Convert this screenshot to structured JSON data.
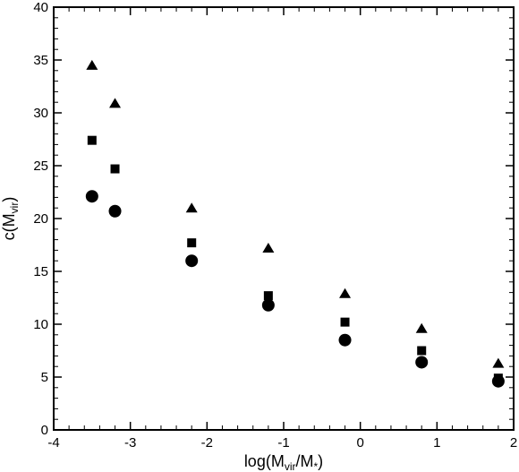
{
  "chart_data": {
    "type": "scatter",
    "title": "",
    "xlabel": {
      "main": "log(M",
      "sub1": "vir",
      "mid": "/M",
      "sub2": "*",
      "end": ")"
    },
    "ylabel": {
      "main": "c(M",
      "sub": "vir",
      "end": ")"
    },
    "xlim": [
      -4,
      2
    ],
    "ylim": [
      0,
      40
    ],
    "x_ticks": [
      -4,
      -3,
      -2,
      -1,
      0,
      1,
      2
    ],
    "y_ticks": [
      0,
      5,
      10,
      15,
      20,
      25,
      30,
      35,
      40
    ],
    "x_tick_labels": [
      "-4",
      "-3",
      "-2",
      "-1",
      "0",
      "1",
      "2"
    ],
    "y_tick_labels": [
      "0",
      "5",
      "10",
      "15",
      "20",
      "25",
      "30",
      "35",
      "40"
    ],
    "grid": false,
    "legend": "none",
    "series": [
      {
        "marker": "triangle",
        "color": "#000000",
        "x": [
          -3.5,
          -3.2,
          -2.2,
          -1.2,
          -0.2,
          0.8,
          1.8
        ],
        "y": [
          34.5,
          30.9,
          21.0,
          17.2,
          12.9,
          9.6,
          6.3
        ]
      },
      {
        "marker": "square",
        "color": "#000000",
        "x": [
          -3.5,
          -3.2,
          -2.2,
          -1.2,
          -0.2,
          0.8,
          1.8
        ],
        "y": [
          27.4,
          24.7,
          17.7,
          12.7,
          10.2,
          7.5,
          4.9
        ]
      },
      {
        "marker": "circle",
        "color": "#000000",
        "x": [
          -3.5,
          -3.2,
          -2.2,
          -1.2,
          -0.2,
          0.8,
          1.8
        ],
        "y": [
          22.1,
          20.7,
          16.0,
          11.8,
          8.5,
          6.4,
          4.6
        ]
      }
    ]
  }
}
